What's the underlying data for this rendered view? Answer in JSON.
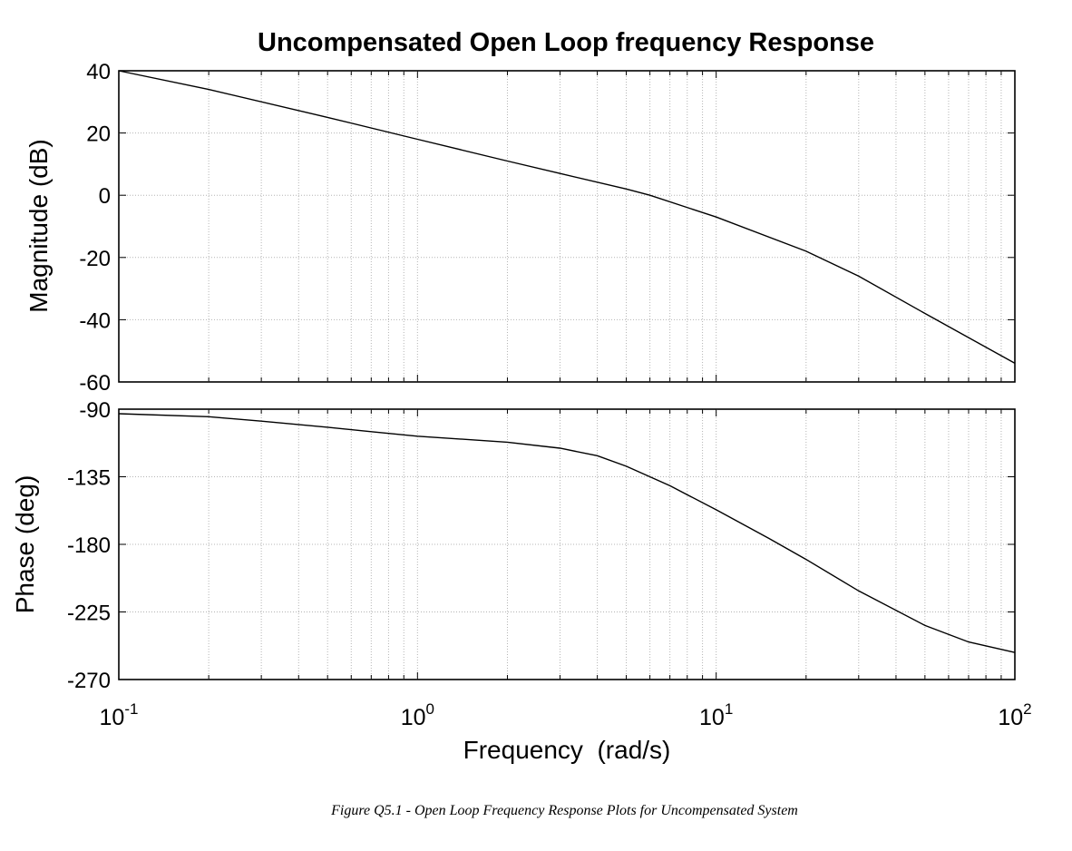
{
  "caption": "Figure Q5.1 - Open Loop Frequency Response Plots for Uncompensated System",
  "chart_data": [
    {
      "type": "line",
      "title": "Uncompensated Open Loop frequency Response",
      "xlabel": "",
      "ylabel": "Magnitude (dB)",
      "xscale": "log",
      "xlim": [
        0.1,
        100
      ],
      "ylim": [
        -60,
        40
      ],
      "yticks": [
        40,
        20,
        0,
        -20,
        -40,
        -60
      ],
      "grid": true,
      "series": [
        {
          "x": [
            0.1,
            0.2,
            0.5,
            1,
            2,
            3,
            5,
            6,
            10,
            20,
            30,
            50,
            100
          ],
          "y": [
            40,
            34,
            25,
            18,
            11,
            7,
            2,
            0,
            -7,
            -18,
            -26,
            -38,
            -54
          ]
        }
      ]
    },
    {
      "type": "line",
      "title": "",
      "xlabel": "Frequency  (rad/s)",
      "ylabel": "Phase (deg)",
      "xscale": "log",
      "xlim": [
        0.1,
        100
      ],
      "ylim": [
        -270,
        -90
      ],
      "yticks": [
        -90,
        -135,
        -180,
        -225,
        -270
      ],
      "xticks": [
        {
          "base": "10",
          "exp": "-1"
        },
        {
          "base": "10",
          "exp": "0"
        },
        {
          "base": "10",
          "exp": "1"
        },
        {
          "base": "10",
          "exp": "2"
        }
      ],
      "grid": true,
      "series": [
        {
          "x": [
            0.1,
            0.2,
            0.3,
            0.5,
            0.7,
            1,
            2,
            3,
            4,
            5,
            7,
            10,
            15,
            20,
            30,
            50,
            70,
            100
          ],
          "y": [
            -93,
            -95,
            -98,
            -102,
            -105,
            -108,
            -112,
            -116,
            -121,
            -128,
            -141,
            -157,
            -176,
            -190,
            -211,
            -234,
            -245,
            -252
          ]
        }
      ]
    }
  ]
}
